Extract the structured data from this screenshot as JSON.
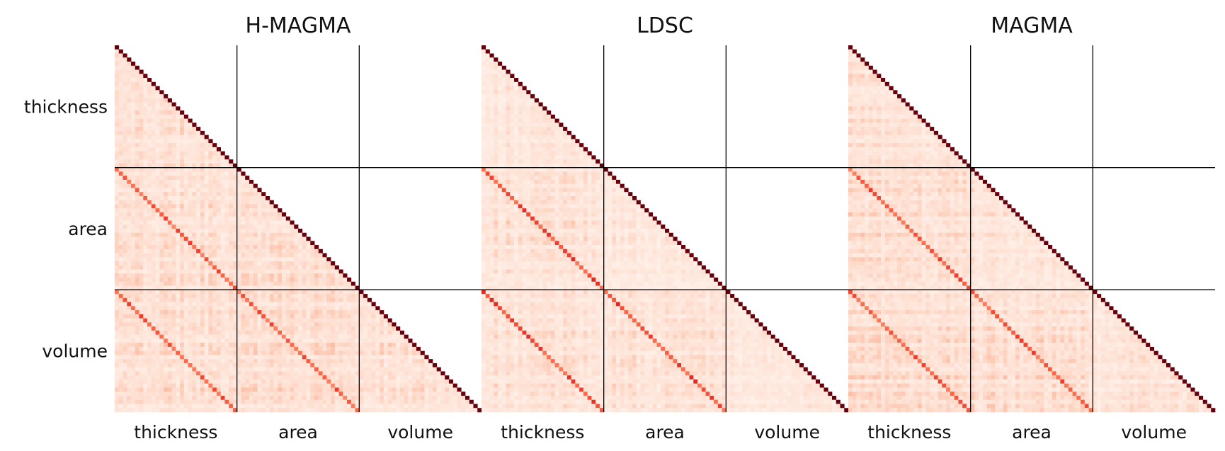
{
  "chart_data": {
    "type": "heatmap",
    "layout": "lower-triangular correlation matrices, three panels side by side",
    "colormap": "Reds",
    "colors": {
      "low": "#fff5f0",
      "high": "#67000d",
      "divider": "#000000"
    },
    "blocks": [
      "thickness",
      "area",
      "volume"
    ],
    "diagonal_value": 1.0,
    "panels": [
      {
        "title": "H-MAGMA",
        "ylabels": [
          "thickness",
          "area",
          "volume"
        ],
        "xlabels": [
          "thickness",
          "area",
          "volume"
        ],
        "within_block_level": 0.14,
        "cross_block_level": 0.15,
        "matching_region_level": 0.55,
        "hotspot_level": 0.45,
        "seed": 11
      },
      {
        "title": "LDSC",
        "ylabels": [],
        "xlabels": [
          "thickness",
          "area",
          "volume"
        ],
        "within_block_level": 0.1,
        "cross_block_level": 0.13,
        "matching_region_level": 0.6,
        "hotspot_level": 0.5,
        "seed": 23
      },
      {
        "title": "MAGMA",
        "ylabels": [],
        "xlabels": [
          "thickness",
          "area",
          "volume"
        ],
        "within_block_level": 0.12,
        "cross_block_level": 0.15,
        "matching_region_level": 0.55,
        "hotspot_level": 0.45,
        "seed": 37
      }
    ]
  }
}
